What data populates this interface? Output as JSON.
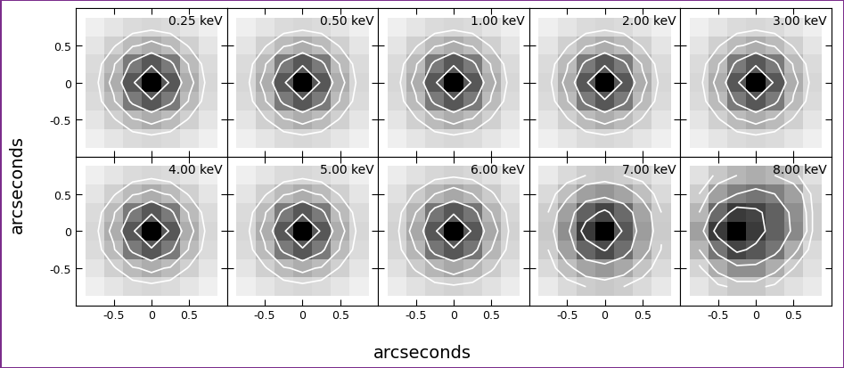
{
  "xlabel": "arcseconds",
  "ylabel": "arcseconds",
  "chart_data": [
    {
      "type": "heatmap",
      "title": "0.25 keV",
      "x": [
        -0.75,
        -0.5,
        -0.25,
        0,
        0.25,
        0.5,
        0.75
      ],
      "y": [
        -0.75,
        -0.5,
        -0.25,
        0,
        0.25,
        0.5,
        0.75
      ],
      "cells": [
        [
          0.006,
          0.015,
          0.028,
          0.035,
          0.028,
          0.015,
          0.006
        ],
        [
          0.015,
          0.045,
          0.09,
          0.12,
          0.09,
          0.045,
          0.015
        ],
        [
          0.028,
          0.09,
          0.28,
          0.45,
          0.28,
          0.09,
          0.028
        ],
        [
          0.035,
          0.12,
          0.45,
          1.0,
          0.45,
          0.12,
          0.035
        ],
        [
          0.028,
          0.09,
          0.28,
          0.45,
          0.28,
          0.09,
          0.028
        ],
        [
          0.015,
          0.045,
          0.09,
          0.12,
          0.09,
          0.045,
          0.015
        ],
        [
          0.006,
          0.015,
          0.028,
          0.035,
          0.028,
          0.015,
          0.006
        ]
      ],
      "levels": [
        0.05,
        0.1,
        0.25,
        0.5
      ],
      "xlim": [
        -1,
        1
      ],
      "ylim": [
        -1,
        1
      ],
      "xticks": [
        -0.5,
        0,
        0.5
      ],
      "yticks": [
        -0.5,
        0,
        0.5
      ],
      "tick_labels": "y",
      "color": "#ffffff"
    },
    {
      "type": "heatmap",
      "title": "0.50 keV",
      "x": [
        -0.75,
        -0.5,
        -0.25,
        0,
        0.25,
        0.5,
        0.75
      ],
      "y": [
        -0.75,
        -0.5,
        -0.25,
        0,
        0.25,
        0.5,
        0.75
      ],
      "cells": [
        [
          0.006,
          0.015,
          0.028,
          0.035,
          0.028,
          0.015,
          0.006
        ],
        [
          0.015,
          0.045,
          0.09,
          0.12,
          0.09,
          0.045,
          0.015
        ],
        [
          0.028,
          0.09,
          0.28,
          0.45,
          0.28,
          0.09,
          0.028
        ],
        [
          0.035,
          0.12,
          0.45,
          1.0,
          0.45,
          0.12,
          0.035
        ],
        [
          0.028,
          0.09,
          0.28,
          0.45,
          0.28,
          0.09,
          0.028
        ],
        [
          0.015,
          0.045,
          0.09,
          0.12,
          0.09,
          0.045,
          0.015
        ],
        [
          0.006,
          0.015,
          0.028,
          0.035,
          0.028,
          0.015,
          0.006
        ]
      ],
      "levels": [
        0.05,
        0.1,
        0.25,
        0.5
      ],
      "xlim": [
        -1,
        1
      ],
      "ylim": [
        -1,
        1
      ],
      "xticks": [
        -0.5,
        0,
        0.5
      ],
      "yticks": [
        -0.5,
        0,
        0.5
      ],
      "tick_labels": false,
      "color": "#ffffff"
    },
    {
      "type": "heatmap",
      "title": "1.00 keV",
      "x": [
        -0.75,
        -0.5,
        -0.25,
        0,
        0.25,
        0.5,
        0.75
      ],
      "y": [
        -0.75,
        -0.5,
        -0.25,
        0,
        0.25,
        0.5,
        0.75
      ],
      "cells": [
        [
          0.006,
          0.015,
          0.028,
          0.035,
          0.028,
          0.015,
          0.006
        ],
        [
          0.015,
          0.045,
          0.09,
          0.12,
          0.09,
          0.045,
          0.015
        ],
        [
          0.028,
          0.09,
          0.28,
          0.45,
          0.28,
          0.09,
          0.028
        ],
        [
          0.035,
          0.12,
          0.45,
          1.0,
          0.45,
          0.12,
          0.035
        ],
        [
          0.028,
          0.09,
          0.28,
          0.45,
          0.28,
          0.09,
          0.028
        ],
        [
          0.015,
          0.045,
          0.09,
          0.12,
          0.09,
          0.045,
          0.015
        ],
        [
          0.006,
          0.015,
          0.028,
          0.035,
          0.028,
          0.015,
          0.006
        ]
      ],
      "levels": [
        0.05,
        0.1,
        0.25,
        0.5
      ],
      "xlim": [
        -1,
        1
      ],
      "ylim": [
        -1,
        1
      ],
      "xticks": [
        -0.5,
        0,
        0.5
      ],
      "yticks": [
        -0.5,
        0,
        0.5
      ],
      "tick_labels": false,
      "color": "#ffffff"
    },
    {
      "type": "heatmap",
      "title": "2.00 keV",
      "x": [
        -0.75,
        -0.5,
        -0.25,
        0,
        0.25,
        0.5,
        0.75
      ],
      "y": [
        -0.75,
        -0.5,
        -0.25,
        0,
        0.25,
        0.5,
        0.75
      ],
      "cells": [
        [
          0.006,
          0.015,
          0.028,
          0.035,
          0.028,
          0.015,
          0.006
        ],
        [
          0.015,
          0.045,
          0.09,
          0.12,
          0.09,
          0.045,
          0.015
        ],
        [
          0.028,
          0.09,
          0.28,
          0.45,
          0.28,
          0.09,
          0.028
        ],
        [
          0.035,
          0.12,
          0.45,
          1.0,
          0.45,
          0.12,
          0.035
        ],
        [
          0.028,
          0.09,
          0.28,
          0.45,
          0.28,
          0.09,
          0.028
        ],
        [
          0.015,
          0.045,
          0.09,
          0.12,
          0.09,
          0.045,
          0.015
        ],
        [
          0.006,
          0.015,
          0.028,
          0.035,
          0.028,
          0.015,
          0.006
        ]
      ],
      "levels": [
        0.05,
        0.1,
        0.25,
        0.5
      ],
      "xlim": [
        -1,
        1
      ],
      "ylim": [
        -1,
        1
      ],
      "xticks": [
        -0.5,
        0,
        0.5
      ],
      "yticks": [
        -0.5,
        0,
        0.5
      ],
      "tick_labels": false,
      "color": "#ffffff"
    },
    {
      "type": "heatmap",
      "title": "3.00 keV",
      "x": [
        -0.75,
        -0.5,
        -0.25,
        0,
        0.25,
        0.5,
        0.75
      ],
      "y": [
        -0.75,
        -0.5,
        -0.25,
        0,
        0.25,
        0.5,
        0.75
      ],
      "cells": [
        [
          0.006,
          0.015,
          0.028,
          0.035,
          0.028,
          0.015,
          0.006
        ],
        [
          0.015,
          0.045,
          0.09,
          0.12,
          0.09,
          0.045,
          0.015
        ],
        [
          0.028,
          0.09,
          0.28,
          0.45,
          0.28,
          0.09,
          0.028
        ],
        [
          0.035,
          0.12,
          0.45,
          1.0,
          0.45,
          0.12,
          0.035
        ],
        [
          0.028,
          0.09,
          0.28,
          0.45,
          0.28,
          0.09,
          0.028
        ],
        [
          0.015,
          0.045,
          0.09,
          0.12,
          0.09,
          0.045,
          0.015
        ],
        [
          0.006,
          0.015,
          0.028,
          0.035,
          0.028,
          0.015,
          0.006
        ]
      ],
      "levels": [
        0.05,
        0.1,
        0.25,
        0.5
      ],
      "xlim": [
        -1,
        1
      ],
      "ylim": [
        -1,
        1
      ],
      "xticks": [
        -0.5,
        0,
        0.5
      ],
      "yticks": [
        -0.5,
        0,
        0.5
      ],
      "tick_labels": false,
      "color": "#ffffff"
    },
    {
      "type": "heatmap",
      "title": "4.00 keV",
      "x": [
        -0.75,
        -0.5,
        -0.25,
        0,
        0.25,
        0.5,
        0.75
      ],
      "y": [
        -0.75,
        -0.5,
        -0.25,
        0,
        0.25,
        0.5,
        0.75
      ],
      "cells": [
        [
          0.006,
          0.015,
          0.028,
          0.035,
          0.028,
          0.015,
          0.006
        ],
        [
          0.015,
          0.045,
          0.09,
          0.12,
          0.09,
          0.045,
          0.015
        ],
        [
          0.028,
          0.09,
          0.28,
          0.45,
          0.28,
          0.09,
          0.028
        ],
        [
          0.035,
          0.12,
          0.45,
          1.0,
          0.45,
          0.12,
          0.035
        ],
        [
          0.028,
          0.09,
          0.28,
          0.45,
          0.28,
          0.09,
          0.028
        ],
        [
          0.015,
          0.045,
          0.09,
          0.12,
          0.09,
          0.045,
          0.015
        ],
        [
          0.006,
          0.015,
          0.028,
          0.035,
          0.028,
          0.015,
          0.006
        ]
      ],
      "levels": [
        0.05,
        0.1,
        0.25,
        0.5
      ],
      "xlim": [
        -1,
        1
      ],
      "ylim": [
        -1,
        1
      ],
      "xticks": [
        -0.5,
        0,
        0.5
      ],
      "yticks": [
        -0.5,
        0,
        0.5
      ],
      "tick_labels": true,
      "color": "#ffffff"
    },
    {
      "type": "heatmap",
      "title": "5.00 keV",
      "x": [
        -0.75,
        -0.5,
        -0.25,
        0,
        0.25,
        0.5,
        0.75
      ],
      "y": [
        -0.75,
        -0.5,
        -0.25,
        0,
        0.25,
        0.5,
        0.75
      ],
      "cells": [
        [
          0.006,
          0.015,
          0.028,
          0.035,
          0.028,
          0.015,
          0.006
        ],
        [
          0.015,
          0.045,
          0.09,
          0.12,
          0.09,
          0.045,
          0.015
        ],
        [
          0.028,
          0.09,
          0.28,
          0.45,
          0.28,
          0.09,
          0.028
        ],
        [
          0.035,
          0.12,
          0.45,
          1.0,
          0.45,
          0.12,
          0.035
        ],
        [
          0.028,
          0.09,
          0.28,
          0.45,
          0.28,
          0.09,
          0.028
        ],
        [
          0.015,
          0.045,
          0.09,
          0.12,
          0.09,
          0.045,
          0.015
        ],
        [
          0.006,
          0.015,
          0.028,
          0.035,
          0.028,
          0.015,
          0.006
        ]
      ],
      "levels": [
        0.05,
        0.1,
        0.25,
        0.5
      ],
      "xlim": [
        -1,
        1
      ],
      "ylim": [
        -1,
        1
      ],
      "xticks": [
        -0.5,
        0,
        0.5
      ],
      "yticks": [
        -0.5,
        0,
        0.5
      ],
      "tick_labels": "x",
      "color": "#ffffff"
    },
    {
      "type": "heatmap",
      "title": "6.00 keV",
      "x": [
        -0.75,
        -0.5,
        -0.25,
        0,
        0.25,
        0.5,
        0.75
      ],
      "y": [
        -0.75,
        -0.5,
        -0.25,
        0,
        0.25,
        0.5,
        0.75
      ],
      "cells": [
        [
          0.008,
          0.02,
          0.035,
          0.042,
          0.035,
          0.02,
          0.008
        ],
        [
          0.02,
          0.055,
          0.1,
          0.13,
          0.1,
          0.055,
          0.02
        ],
        [
          0.035,
          0.1,
          0.3,
          0.45,
          0.3,
          0.1,
          0.035
        ],
        [
          0.042,
          0.13,
          0.45,
          1.0,
          0.45,
          0.13,
          0.042
        ],
        [
          0.035,
          0.1,
          0.3,
          0.45,
          0.3,
          0.1,
          0.035
        ],
        [
          0.02,
          0.055,
          0.1,
          0.13,
          0.1,
          0.055,
          0.02
        ],
        [
          0.008,
          0.02,
          0.035,
          0.042,
          0.035,
          0.02,
          0.008
        ]
      ],
      "levels": [
        0.05,
        0.1,
        0.25,
        0.5
      ],
      "xlim": [
        -1,
        1
      ],
      "ylim": [
        -1,
        1
      ],
      "xticks": [
        -0.5,
        0,
        0.5
      ],
      "yticks": [
        -0.5,
        0,
        0.5
      ],
      "tick_labels": "x",
      "color": "#ffffff"
    },
    {
      "type": "heatmap",
      "title": "7.00 keV",
      "x": [
        -0.75,
        -0.5,
        -0.25,
        0,
        0.25,
        0.5,
        0.75
      ],
      "y": [
        -0.75,
        -0.5,
        -0.25,
        0,
        0.25,
        0.5,
        0.75
      ],
      "cells": [
        [
          0.01,
          0.03,
          0.05,
          0.06,
          0.05,
          0.03,
          0.012
        ],
        [
          0.03,
          0.08,
          0.14,
          0.17,
          0.13,
          0.07,
          0.028
        ],
        [
          0.05,
          0.15,
          0.38,
          0.52,
          0.33,
          0.13,
          0.048
        ],
        [
          0.06,
          0.2,
          0.6,
          1.0,
          0.45,
          0.16,
          0.055
        ],
        [
          0.05,
          0.15,
          0.4,
          0.55,
          0.35,
          0.14,
          0.05
        ],
        [
          0.03,
          0.08,
          0.15,
          0.18,
          0.14,
          0.08,
          0.03
        ],
        [
          0.01,
          0.03,
          0.05,
          0.06,
          0.05,
          0.035,
          0.015
        ]
      ],
      "levels": [
        0.05,
        0.1,
        0.25,
        0.5
      ],
      "xlim": [
        -1,
        1
      ],
      "ylim": [
        -1,
        1
      ],
      "xticks": [
        -0.5,
        0,
        0.5
      ],
      "yticks": [
        -0.5,
        0,
        0.5
      ],
      "tick_labels": "x",
      "color": "#ffffff"
    },
    {
      "type": "heatmap",
      "title": "8.00 keV",
      "x": [
        -0.75,
        -0.5,
        -0.25,
        0,
        0.25,
        0.5,
        0.75
      ],
      "y": [
        -0.75,
        -0.5,
        -0.25,
        0,
        0.25,
        0.5,
        0.75
      ],
      "cells": [
        [
          0.015,
          0.04,
          0.06,
          0.06,
          0.04,
          0.02,
          0.01
        ],
        [
          0.04,
          0.12,
          0.2,
          0.2,
          0.12,
          0.05,
          0.02
        ],
        [
          0.1,
          0.3,
          0.55,
          0.45,
          0.3,
          0.12,
          0.03
        ],
        [
          0.15,
          0.6,
          1.0,
          0.6,
          0.4,
          0.22,
          0.05
        ],
        [
          0.1,
          0.35,
          0.6,
          0.55,
          0.4,
          0.2,
          0.05
        ],
        [
          0.05,
          0.15,
          0.25,
          0.3,
          0.25,
          0.15,
          0.04
        ],
        [
          0.02,
          0.06,
          0.1,
          0.12,
          0.1,
          0.06,
          0.02
        ]
      ],
      "levels": [
        0.05,
        0.1,
        0.25,
        0.5
      ],
      "xlim": [
        -1,
        1
      ],
      "ylim": [
        -1,
        1
      ],
      "xticks": [
        -0.5,
        0,
        0.5
      ],
      "yticks": [
        -0.5,
        0,
        0.5
      ],
      "tick_labels": "x",
      "color": "#ffffff"
    }
  ]
}
